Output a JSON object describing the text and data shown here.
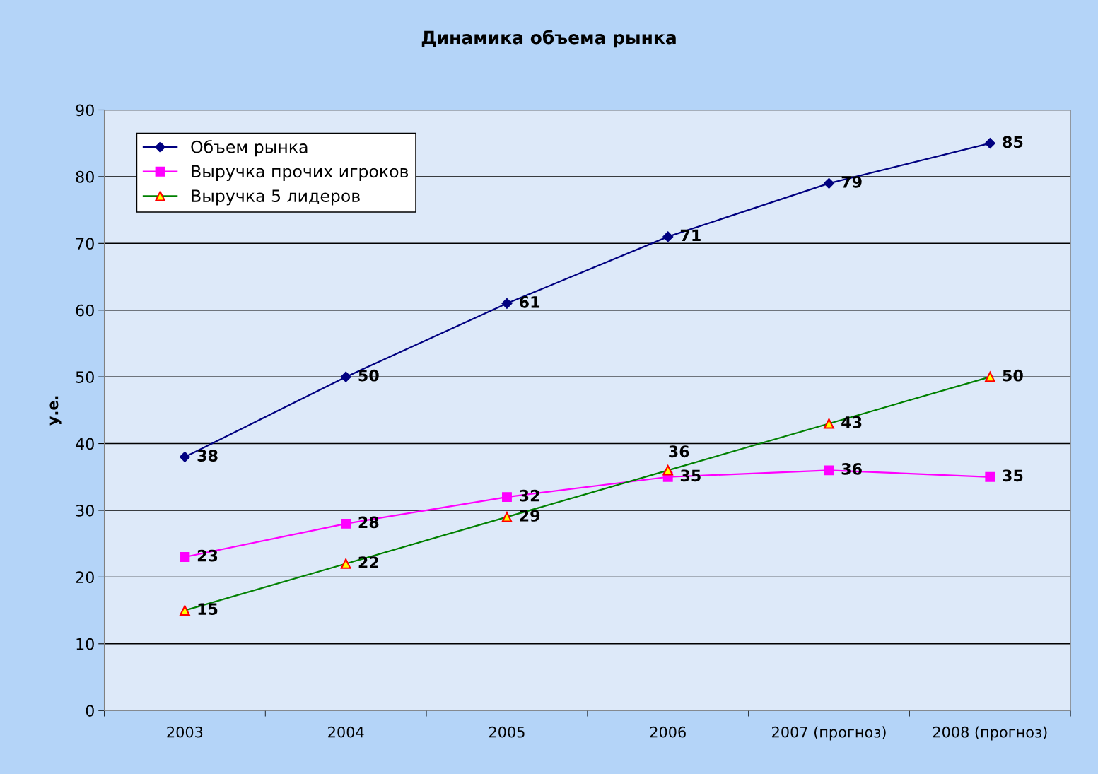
{
  "chart_data": {
    "type": "line",
    "title": "Динамика объема рынка",
    "ylabel": "у.е.",
    "categories": [
      "2003",
      "2004",
      "2005",
      "2006",
      "2007 (прогноз)",
      "2008 (прогноз)"
    ],
    "series": [
      {
        "name": "Объем рынка",
        "color": "#000080",
        "marker": "diamond",
        "values": [
          38,
          50,
          61,
          71,
          79,
          85
        ]
      },
      {
        "name": "Выручка прочих игроков",
        "color": "#ff00ff",
        "marker": "square",
        "values": [
          23,
          28,
          32,
          35,
          36,
          35
        ]
      },
      {
        "name": "Выручка 5 лидеров",
        "color": "#008000",
        "marker": "triangle",
        "values": [
          15,
          22,
          29,
          36,
          43,
          50
        ]
      }
    ],
    "ylim": [
      0,
      90
    ],
    "yticks": [
      0,
      10,
      20,
      30,
      40,
      50,
      60,
      70,
      80,
      90
    ],
    "grid": "y",
    "legend": "top left",
    "data_labels": true
  }
}
